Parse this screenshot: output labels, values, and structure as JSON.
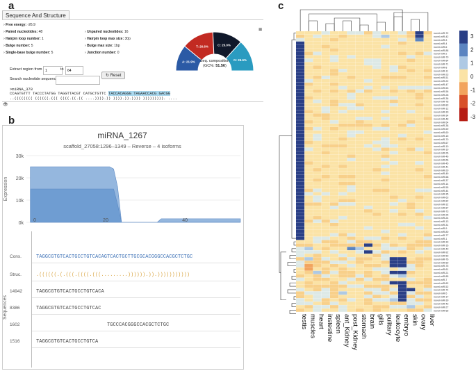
{
  "labels": {
    "a": "a",
    "b": "b",
    "c": "c"
  },
  "panel_a": {
    "tab": "Sequence And Structure",
    "stats_left": [
      {
        "label": "Free energy:",
        "value": "-26.9"
      },
      {
        "label": "Paired nucleotides:",
        "value": "48"
      },
      {
        "label": "Hairpin loop number:",
        "value": "1"
      },
      {
        "label": "Bulge number:",
        "value": "5"
      },
      {
        "label": "Single-base bulge number:",
        "value": "5"
      }
    ],
    "stats_right": [
      {
        "label": "Unpaired nucleotides:",
        "value": "16"
      },
      {
        "label": "Hairpin loop max size:",
        "value": "30p"
      },
      {
        "label": "Bulge max size:",
        "value": "1bp"
      },
      {
        "label": "Junction number:",
        "value": "0"
      }
    ],
    "extract_label": "Extract region from",
    "from_value": "1",
    "to_label": "to",
    "to_value": "64",
    "reset_label": "Reset",
    "search_label": "Search nucleotide sequence:",
    "seq_name": ">miRNA_378",
    "seq_line": "CCAGTGTTT TACCCTATGG TAGGTTACGT CATGCTGTTC",
    "seq_highlight": "TACCACAGGG TAGAACCACG GACGG",
    "struct_line": "..(((((((( ((((((.((( ((((.((.(( ....)))).)) )))).)).)))) ))))))))). ....",
    "donut_center_line1": "Seq. composition",
    "donut_center_line2": "(GC%: ",
    "donut_center_gc": "51.56",
    "donut_center_line3": ")",
    "donut": [
      {
        "label": "A: 21.9%",
        "value": 21.9,
        "color": "#2b5aa5"
      },
      {
        "label": "T: 26.6%",
        "value": 26.6,
        "color": "#c22a22"
      },
      {
        "label": "C: 25.0%",
        "value": 25.0,
        "color": "#10182a"
      },
      {
        "label": "G: 26.6%",
        "value": 26.6,
        "color": "#2a9bc0"
      }
    ]
  },
  "panel_b": {
    "title": "miRNA_1267",
    "subtitle": "scaffold_27058:1296–1349 – Reverse – 4 isoforms",
    "ylabel": "Expression",
    "seq_axis_label": "Sequences",
    "rows": [
      {
        "label": "Cons.",
        "seq": "TAGGCGTGTCACTGCCTGTCACAGTCACTGCTTGCGCACGGGCCACGCTCTGC",
        "color": "#3a6fb5"
      },
      {
        "label": "Struc.",
        "seq": ".((((((.(.(((.((((.(((.........)))))).)).)))))))))))",
        "color": "#d9a441"
      },
      {
        "label": "14942",
        "seq": "TAGGCGTGTCACTGCCTGTCACA",
        "color": "#444444"
      },
      {
        "label": "8386",
        "seq": "TAGGCGTGTCACTGCCTGTCAC",
        "color": "#444444"
      },
      {
        "label": "1602",
        "seq": "                        TGCCCACGGGCCACGCTCTGC",
        "color": "#444444"
      },
      {
        "label": "1516",
        "seq": "TAGGCGTGTCACTGCCTGTCA",
        "color": "#444444"
      }
    ]
  },
  "chart_data": [
    {
      "type": "area",
      "title": "miRNA_1267",
      "subtitle": "scaffold_27058:1296–1349 – Reverse – 4 isoforms",
      "xlabel": "",
      "ylabel": "Expression",
      "ylim": [
        0,
        30000
      ],
      "xlim": [
        0,
        54
      ],
      "y_ticks": [
        {
          "v": 0,
          "t": "0k"
        },
        {
          "v": 10000,
          "t": "10k"
        },
        {
          "v": 20000,
          "t": "20k"
        },
        {
          "v": 30000,
          "t": "30k"
        }
      ],
      "x_ticks": [
        {
          "v": 0,
          "t": "0"
        },
        {
          "v": 20,
          "t": "20"
        },
        {
          "v": 40,
          "t": "40"
        }
      ],
      "series": [
        {
          "name": "",
          "color": "#8fb3dc",
          "points": [
            [
              1,
              25000
            ],
            [
              21,
              25000
            ],
            [
              22,
              24000
            ],
            [
              23,
              16000
            ],
            [
              24,
              0
            ],
            [
              33,
              0
            ],
            [
              34,
              1600
            ],
            [
              54,
              1600
            ]
          ]
        },
        {
          "name": "",
          "color": "#6d9bd1",
          "points": [
            [
              1,
              15000
            ],
            [
              22,
              15000
            ],
            [
              23,
              8000
            ],
            [
              24,
              0
            ],
            [
              54,
              0
            ]
          ]
        }
      ]
    },
    {
      "type": "heatmap",
      "legend_ticks": [
        "3",
        "2",
        "1",
        "0",
        "-1",
        "-2",
        "-3"
      ],
      "legend_range": [
        -3,
        3
      ],
      "columns": [
        "testis",
        "muscles",
        "heart",
        "instestine",
        "spleen",
        "ant_Kidney",
        "post_Kidney",
        "stomach",
        "brain",
        "gills",
        "pulitary",
        "leukocyte",
        "embryo",
        "skin",
        "ovary",
        "liver"
      ],
      "rows": [
        "novel-miR-72",
        "novel-miR-42",
        "novel-miR-3",
        "novel-miR-4",
        "novel-miR-6",
        "novel-miR-88",
        "novel-miR-2",
        "novel-miR-79",
        "novel-miR-84",
        "novel-miR-71",
        "novel-miR-8",
        "novel-miR-11",
        "novel-miR-23",
        "novel-miR-51",
        "novel-miR-22",
        "novel-miR-47",
        "novel-miR-53",
        "novel-miR-56",
        "novel-miR-28",
        "novel-miR-36",
        "novel-miR-78",
        "novel-miR-83",
        "novel-miR-12",
        "novel-miR-30",
        "novel-miR-34",
        "novel-miR-48",
        "novel-miR-54",
        "novel-miR-38",
        "novel-miR-59",
        "novel-miR-60",
        "novel-miR-15",
        "novel-miR-70",
        "novel-miR-67",
        "novel-miR-10",
        "novel-miR-19",
        "novel-miR-26",
        "novel-miR-46",
        "novel-miR-66",
        "novel-miR-45",
        "novel-miR-41",
        "novel-miR-29",
        "novel-miR-49",
        "novel-miR-58",
        "novel-miR-37",
        "novel-miR-14",
        "novel-miR-55",
        "novel-miR-44",
        "novel-miR-35",
        "novel-miR-63",
        "novel-miR-82",
        "novel-miR-32",
        "novel-miR-87",
        "novel-miR-73",
        "novel-miR-25",
        "novel-miR-24",
        "novel-miR-13",
        "novel-miR-31",
        "novel-miR-9",
        "novel-miR-80",
        "novel-miR-77",
        "novel-miR-1",
        "novel-miR-33",
        "novel-miR-16",
        "novel-miR-40",
        "novel-miR-92",
        "novel-miR-50",
        "novel-miR-76",
        "novel-miR-69",
        "novel-miR-75",
        "novel-miR-61",
        "novel-miR-21",
        "novel-miR-85",
        "novel-miR-7",
        "novel-miR-62",
        "novel-miR-52",
        "novel-miR-74",
        "novel-miR-5",
        "novel-miR-17",
        "novel-miR-39",
        "novel-miR-43",
        "novel-miR-27",
        "novel-miR-65"
      ]
    }
  ]
}
